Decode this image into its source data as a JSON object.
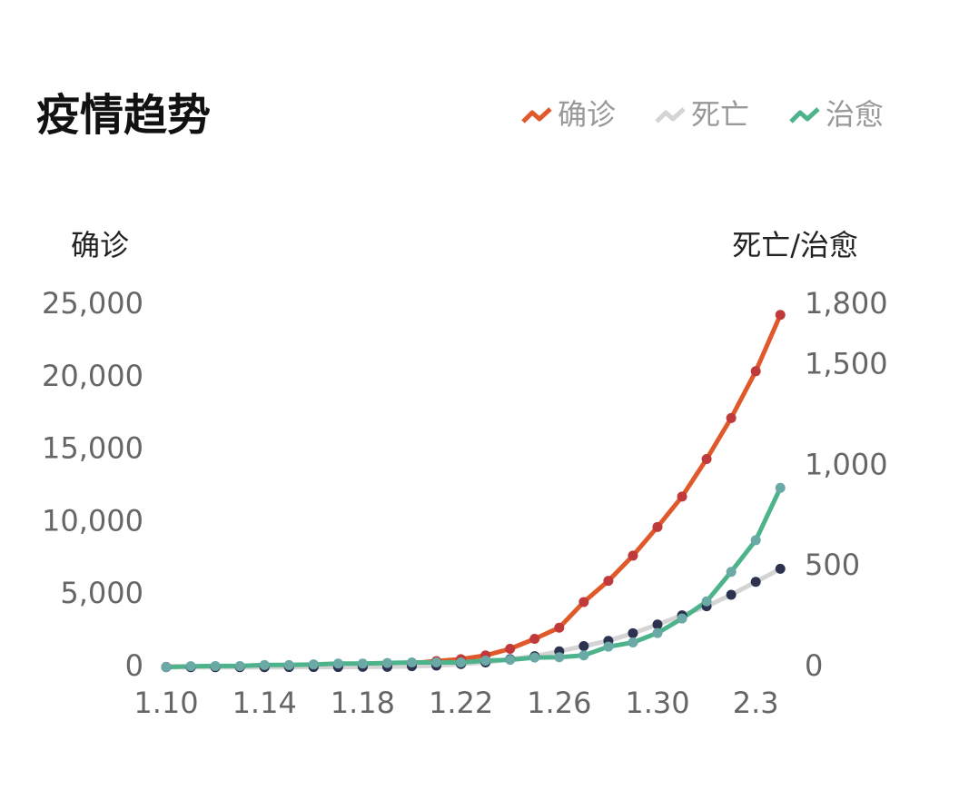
{
  "chart_data": {
    "type": "line",
    "title": "疫情趋势",
    "y_label": "确诊",
    "y2_label": "死亡/治愈",
    "categories": [
      "1.10",
      null,
      null,
      null,
      "1.14",
      null,
      null,
      null,
      "1.18",
      null,
      null,
      null,
      "1.22",
      null,
      null,
      null,
      "1.26",
      null,
      null,
      null,
      "1.30",
      null,
      null,
      null,
      "2.3",
      null
    ],
    "ylim": [
      0,
      25000
    ],
    "yticks": [
      0,
      {
        "value": 5000,
        "label": "5,000"
      },
      {
        "value": 10000,
        "label": "10,000"
      },
      {
        "value": 15000,
        "label": "15,000"
      },
      {
        "value": 20000,
        "label": "20,000"
      },
      {
        "value": 25000,
        "label": "25,000"
      }
    ],
    "y2lim": [
      0,
      1800
    ],
    "y2ticks": [
      0,
      500,
      {
        "value": 1000,
        "label": "1,000"
      },
      {
        "value": 1500,
        "label": "1,500"
      },
      {
        "value": 1800,
        "label": "1,800"
      }
    ],
    "legend": "top-right",
    "series": [
      {
        "name": "确诊",
        "color": "#e0592b",
        "marker_color": "#c0393b",
        "values": [
          41,
          41,
          41,
          41,
          41,
          41,
          45,
          62,
          121,
          198,
          291,
          440,
          571,
          830,
          1287,
          1975,
          2744,
          4515,
          5974,
          7711,
          9692,
          11791,
          14380,
          17205,
          20438,
          24324
        ]
      },
      {
        "name": "死亡",
        "color": "#d4d4d4",
        "marker_color": "#2d3250",
        "axis": "y2",
        "values": [
          1,
          1,
          1,
          1,
          1,
          2,
          2,
          2,
          3,
          3,
          6,
          9,
          17,
          25,
          41,
          56,
          80,
          106,
          132,
          170,
          213,
          259,
          304,
          361,
          425,
          490
        ]
      },
      {
        "name": "治愈",
        "color": "#4db38a",
        "marker_color": "#6aa9a6",
        "axis": "y2",
        "values": [
          2,
          6,
          7,
          7,
          12,
          12,
          15,
          19,
          19,
          22,
          25,
          25,
          25,
          34,
          38,
          49,
          51,
          60,
          103,
          124,
          171,
          243,
          328,
          475,
          632,
          892
        ]
      }
    ]
  }
}
